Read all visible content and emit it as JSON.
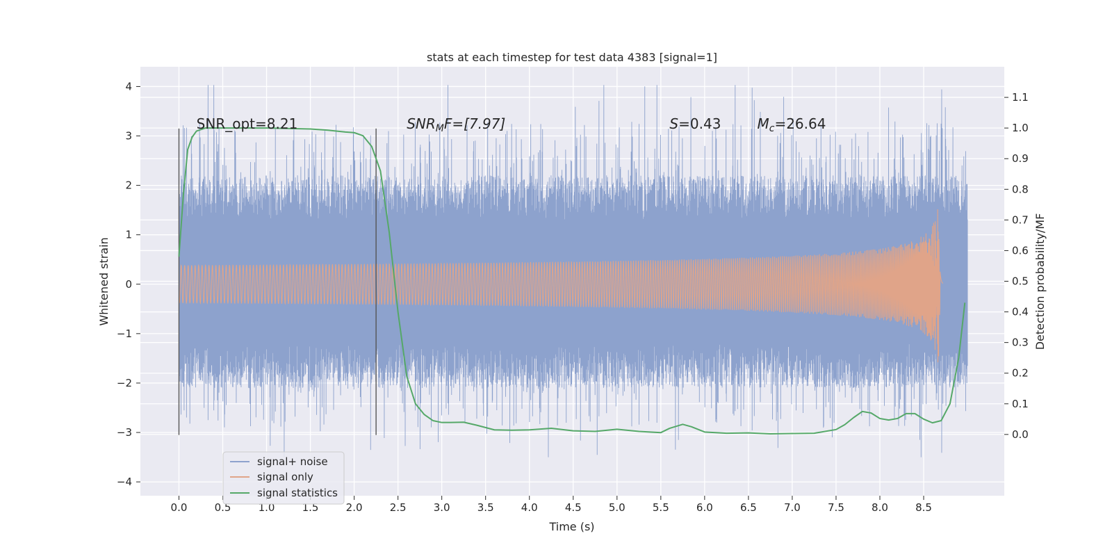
{
  "chart_data": {
    "type": "line",
    "title": "stats at each timestep for test data 4383 [signal=1]",
    "xlabel": "Time (s)",
    "ylabel_left": "Whitened strain",
    "ylabel_right": "Detection probability/MF",
    "xlim": [
      -0.44,
      9.42
    ],
    "ylim_left": [
      -4.28,
      4.4
    ],
    "ylim_right": [
      -0.2,
      1.2
    ],
    "x_ticks": [
      "0.0",
      "0.5",
      "1.0",
      "1.5",
      "2.0",
      "2.5",
      "3.0",
      "3.5",
      "4.0",
      "4.5",
      "5.0",
      "5.5",
      "6.0",
      "6.5",
      "7.0",
      "7.5",
      "8.0",
      "8.5"
    ],
    "y_ticks_left": [
      "−4",
      "−3",
      "−2",
      "−1",
      "0",
      "1",
      "2",
      "3",
      "4"
    ],
    "y_ticks_right": [
      "0.0",
      "0.1",
      "0.2",
      "0.3",
      "0.4",
      "0.5",
      "0.6",
      "0.7",
      "0.8",
      "0.9",
      "1.0",
      "1.1"
    ],
    "grid": true,
    "legend_position": "lower-left",
    "annotations": [
      {
        "label": "SNR_opt=8.21",
        "x": 0.2,
        "y": 3.15
      },
      {
        "label": "SNR",
        "sub": "M",
        "suffix": "F=[7.97]",
        "italic": true,
        "x": 2.6,
        "y": 3.15
      },
      {
        "label": "S",
        "sub": "",
        "suffix": "=0.43",
        "italic": true,
        "x": 5.6,
        "y": 3.15
      },
      {
        "label": "M",
        "sub": "c",
        "suffix": "=26.64",
        "italic": true,
        "x": 6.6,
        "y": 3.15
      }
    ],
    "vlines": [
      {
        "x": 0.0,
        "y0": -3.05,
        "y1": 3.15
      },
      {
        "x": 2.25,
        "y0": -3.05,
        "y1": 3.15
      }
    ],
    "series": [
      {
        "name": "signal+ noise",
        "color": "#8da2cd",
        "axis": "left",
        "noise": {
          "t_start": 0.0,
          "t_end": 9.0,
          "band_hi": 1.3,
          "band_lo": -1.2,
          "peak_max": 4.03,
          "trough_min": -3.5
        }
      },
      {
        "name": "signal only",
        "color": "#e0a489",
        "axis": "left",
        "chirp": {
          "t_start": 0.0,
          "t_merge": 8.67,
          "peak_amplitude": 1.75,
          "ringdown_end": 8.72
        }
      },
      {
        "name": "signal statistics",
        "color": "#55a868",
        "axis": "right",
        "x": [
          0.0,
          0.05,
          0.1,
          0.15,
          0.2,
          0.3,
          0.5,
          1.0,
          1.5,
          1.7,
          1.9,
          2.0,
          2.1,
          2.2,
          2.3,
          2.4,
          2.5,
          2.6,
          2.7,
          2.8,
          2.9,
          3.0,
          3.1,
          3.25,
          3.4,
          3.6,
          3.8,
          4.0,
          4.25,
          4.5,
          4.75,
          5.0,
          5.25,
          5.5,
          5.6,
          5.75,
          5.85,
          6.0,
          6.25,
          6.5,
          6.75,
          7.0,
          7.25,
          7.5,
          7.6,
          7.7,
          7.8,
          7.9,
          8.0,
          8.1,
          8.2,
          8.3,
          8.4,
          8.5,
          8.6,
          8.7,
          8.8,
          8.9,
          8.97
        ],
        "values": [
          0.58,
          0.78,
          0.93,
          0.97,
          0.99,
          1.0,
          1.0,
          1.0,
          0.997,
          0.993,
          0.987,
          0.985,
          0.975,
          0.94,
          0.86,
          0.66,
          0.4,
          0.19,
          0.1,
          0.065,
          0.045,
          0.039,
          0.039,
          0.04,
          0.03,
          0.015,
          0.014,
          0.015,
          0.02,
          0.012,
          0.01,
          0.017,
          0.01,
          0.006,
          0.02,
          0.033,
          0.025,
          0.008,
          0.004,
          0.005,
          0.002,
          0.003,
          0.004,
          0.016,
          0.032,
          0.055,
          0.075,
          0.07,
          0.052,
          0.047,
          0.052,
          0.068,
          0.068,
          0.05,
          0.038,
          0.045,
          0.1,
          0.25,
          0.43
        ]
      }
    ]
  }
}
